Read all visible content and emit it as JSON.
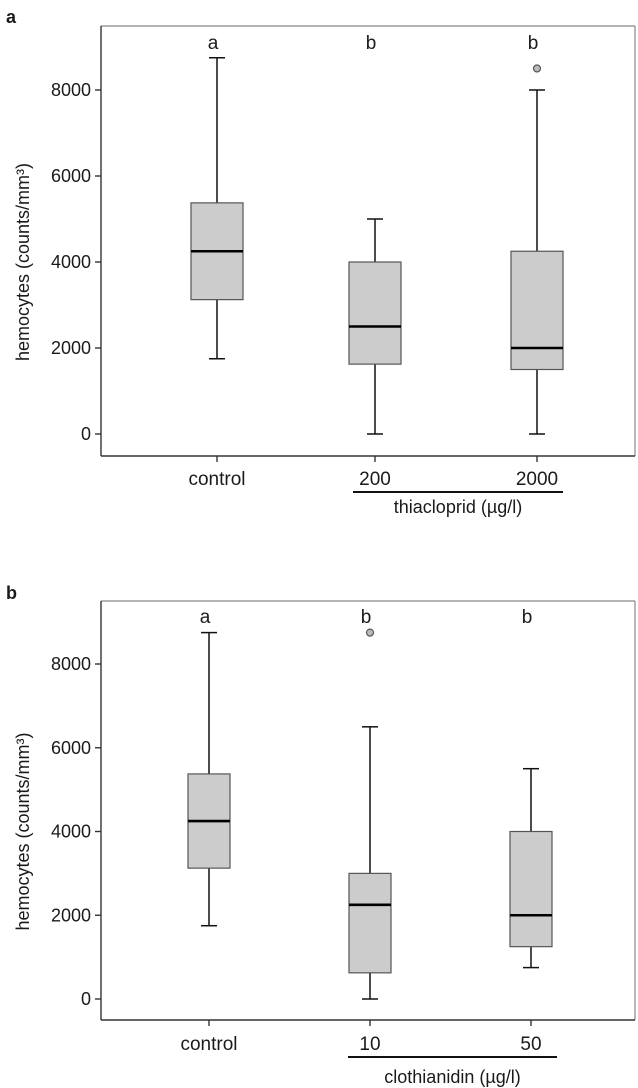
{
  "chart_data": [
    {
      "type": "box",
      "panel_label": "a",
      "ylabel": "hemocytes (counts/mm³)",
      "ylim": [
        -500,
        9500
      ],
      "yticks": [
        0,
        2000,
        4000,
        6000,
        8000
      ],
      "ytick_labels": [
        "0",
        "2000",
        "4000",
        "6000",
        "8000"
      ],
      "categories": [
        "control",
        "200",
        "2000"
      ],
      "group_label": "thiacloprid (µg/l)",
      "group_spans": [
        "200",
        "2000"
      ],
      "boxes": [
        {
          "category": "control",
          "min": 1750,
          "q1": 3125,
          "median": 4250,
          "q3": 5375,
          "max": 8750,
          "outliers": [],
          "letter": "a"
        },
        {
          "category": "200",
          "min": 0,
          "q1": 1625,
          "median": 2500,
          "q3": 4000,
          "max": 5000,
          "outliers": [],
          "letter": "b"
        },
        {
          "category": "2000",
          "min": 0,
          "q1": 1500,
          "median": 2000,
          "q3": 4250,
          "max": 8000,
          "outliers": [
            8500
          ],
          "letter": "b"
        }
      ],
      "box_color": "#cccccc",
      "grid": false
    },
    {
      "type": "box",
      "panel_label": "b",
      "ylabel": "hemocytes (counts/mm³)",
      "ylim": [
        -500,
        9500
      ],
      "yticks": [
        0,
        2000,
        4000,
        6000,
        8000
      ],
      "ytick_labels": [
        "0",
        "2000",
        "4000",
        "6000",
        "8000"
      ],
      "categories": [
        "control",
        "10",
        "50"
      ],
      "group_label": "clothianidin (µg/l)",
      "group_spans": [
        "10",
        "50"
      ],
      "boxes": [
        {
          "category": "control",
          "min": 1750,
          "q1": 3125,
          "median": 4250,
          "q3": 5375,
          "max": 8750,
          "outliers": [],
          "letter": "a"
        },
        {
          "category": "10",
          "min": 0,
          "q1": 625,
          "median": 2250,
          "q3": 3000,
          "max": 6500,
          "outliers": [
            8750
          ],
          "letter": "b"
        },
        {
          "category": "50",
          "min": 750,
          "q1": 1250,
          "median": 2000,
          "q3": 4000,
          "max": 5500,
          "outliers": [],
          "letter": "b"
        }
      ],
      "box_color": "#cccccc",
      "grid": false
    }
  ]
}
